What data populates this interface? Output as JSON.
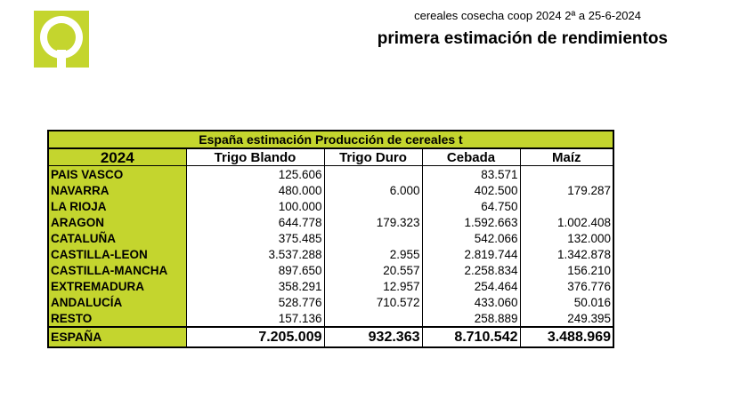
{
  "header": {
    "subtitle": "cereales cosecha coop 2024 2ª a 25-6-2024",
    "title": "primera estimación de rendimientos"
  },
  "table": {
    "caption": "España estimación Producción de cereales t",
    "year": "2024",
    "columns": [
      "Trigo Blando",
      "Trigo Duro",
      "Cebada",
      "Maíz"
    ],
    "rows": [
      {
        "region": "PAIS VASCO",
        "values": [
          "125.606",
          "",
          "83.571",
          ""
        ]
      },
      {
        "region": "NAVARRA",
        "values": [
          "480.000",
          "6.000",
          "402.500",
          "179.287"
        ]
      },
      {
        "region": "LA RIOJA",
        "values": [
          "100.000",
          "",
          "64.750",
          ""
        ]
      },
      {
        "region": "ARAGON",
        "values": [
          "644.778",
          "179.323",
          "1.592.663",
          "1.002.408"
        ]
      },
      {
        "region": "CATALUÑA",
        "values": [
          "375.485",
          "",
          "542.066",
          "132.000"
        ]
      },
      {
        "region": "CASTILLA-LEON",
        "values": [
          "3.537.288",
          "2.955",
          "2.819.744",
          "1.342.878"
        ]
      },
      {
        "region": "CASTILLA-MANCHA",
        "values": [
          "897.650",
          "20.557",
          "2.258.834",
          "156.210"
        ]
      },
      {
        "region": "EXTREMADURA",
        "values": [
          "358.291",
          "12.957",
          "254.464",
          "376.776"
        ]
      },
      {
        "region": "ANDALUCÍA",
        "values": [
          "528.776",
          "710.572",
          "433.060",
          "50.016"
        ]
      },
      {
        "region": "RESTO",
        "values": [
          "157.136",
          "",
          "258.889",
          "249.395"
        ]
      }
    ],
    "total": {
      "region": "ESPAÑA",
      "values": [
        "7.205.009",
        "932.363",
        "8.710.542",
        "3.488.969"
      ]
    }
  },
  "colors": {
    "accent": "#c4d52e"
  }
}
